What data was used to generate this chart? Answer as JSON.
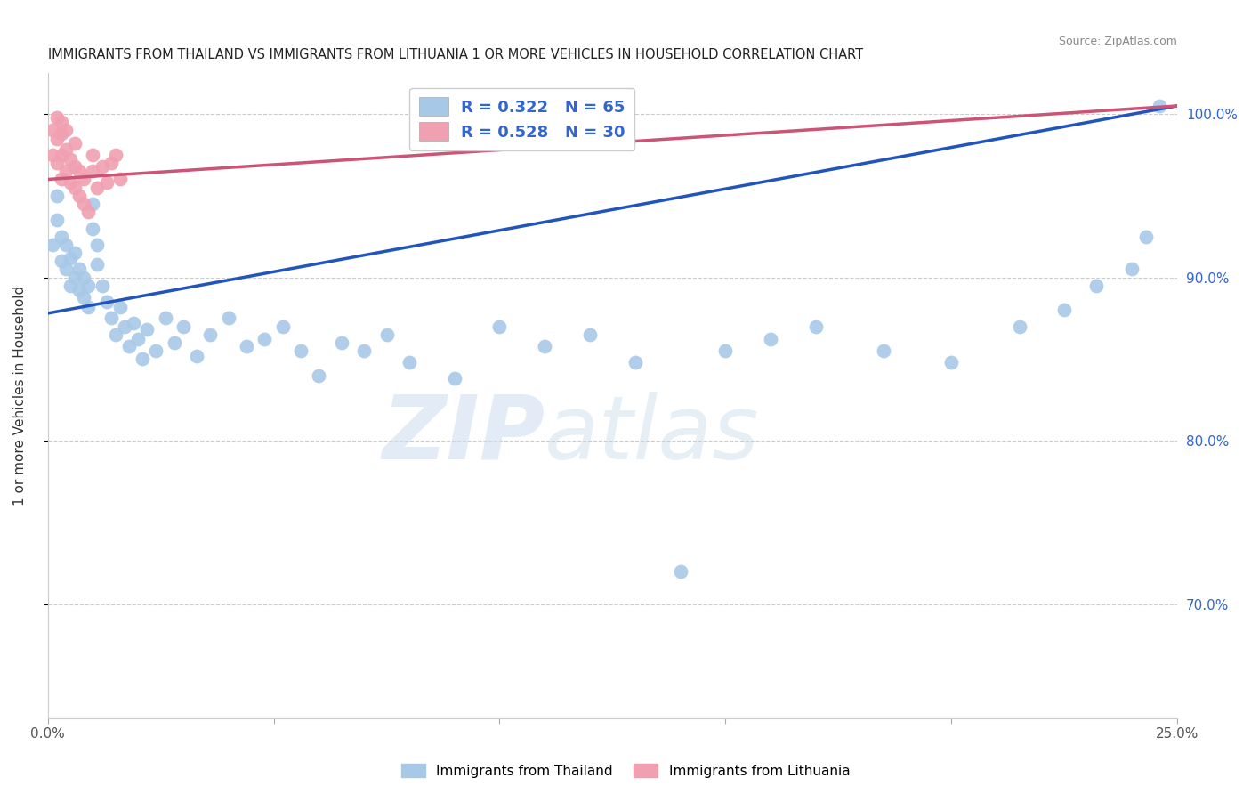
{
  "title": "IMMIGRANTS FROM THAILAND VS IMMIGRANTS FROM LITHUANIA 1 OR MORE VEHICLES IN HOUSEHOLD CORRELATION CHART",
  "source": "Source: ZipAtlas.com",
  "ylabel": "1 or more Vehicles in Household",
  "xmin": 0.0,
  "xmax": 0.25,
  "ymin": 0.63,
  "ymax": 1.025,
  "xticks": [
    0.0,
    0.05,
    0.1,
    0.15,
    0.2,
    0.25
  ],
  "xticklabels": [
    "0.0%",
    "",
    "",
    "",
    "",
    "25.0%"
  ],
  "ytick_positions": [
    0.7,
    0.8,
    0.9,
    1.0
  ],
  "yright_ticks": [
    0.7,
    0.8,
    0.9,
    1.0
  ],
  "yright_labels": [
    "70.0%",
    "80.0%",
    "90.0%",
    "100.0%"
  ],
  "legend_R_blue": "R = 0.322",
  "legend_N_blue": "N = 65",
  "legend_R_pink": "R = 0.528",
  "legend_N_pink": "N = 30",
  "blue_color": "#a8c8e8",
  "blue_line_color": "#2255bb",
  "pink_color": "#f0a0b0",
  "pink_line_color": "#cc5577",
  "blue_line_x0": 0.0,
  "blue_line_y0": 0.878,
  "blue_line_x1": 0.25,
  "blue_line_y1": 1.005,
  "pink_line_x0": 0.0,
  "pink_line_y0": 0.96,
  "pink_line_x1": 0.25,
  "pink_line_y1": 1.005,
  "scatter_blue_x": [
    0.001,
    0.002,
    0.002,
    0.003,
    0.003,
    0.004,
    0.004,
    0.005,
    0.005,
    0.006,
    0.006,
    0.007,
    0.007,
    0.008,
    0.008,
    0.009,
    0.009,
    0.01,
    0.01,
    0.011,
    0.011,
    0.012,
    0.013,
    0.014,
    0.015,
    0.016,
    0.017,
    0.018,
    0.019,
    0.02,
    0.021,
    0.022,
    0.024,
    0.026,
    0.028,
    0.03,
    0.033,
    0.036,
    0.04,
    0.044,
    0.048,
    0.052,
    0.056,
    0.06,
    0.065,
    0.07,
    0.075,
    0.08,
    0.09,
    0.1,
    0.11,
    0.12,
    0.13,
    0.14,
    0.15,
    0.16,
    0.17,
    0.185,
    0.2,
    0.215,
    0.225,
    0.232,
    0.24,
    0.243,
    0.246
  ],
  "scatter_blue_y": [
    0.92,
    0.935,
    0.95,
    0.91,
    0.925,
    0.905,
    0.92,
    0.895,
    0.912,
    0.9,
    0.915,
    0.892,
    0.905,
    0.888,
    0.9,
    0.882,
    0.895,
    0.93,
    0.945,
    0.92,
    0.908,
    0.895,
    0.885,
    0.875,
    0.865,
    0.882,
    0.87,
    0.858,
    0.872,
    0.862,
    0.85,
    0.868,
    0.855,
    0.875,
    0.86,
    0.87,
    0.852,
    0.865,
    0.875,
    0.858,
    0.862,
    0.87,
    0.855,
    0.84,
    0.86,
    0.855,
    0.865,
    0.848,
    0.838,
    0.87,
    0.858,
    0.865,
    0.848,
    0.72,
    0.855,
    0.862,
    0.87,
    0.855,
    0.848,
    0.87,
    0.88,
    0.895,
    0.905,
    0.925,
    1.005
  ],
  "scatter_pink_x": [
    0.001,
    0.001,
    0.002,
    0.002,
    0.002,
    0.003,
    0.003,
    0.003,
    0.003,
    0.004,
    0.004,
    0.004,
    0.005,
    0.005,
    0.006,
    0.006,
    0.006,
    0.007,
    0.007,
    0.008,
    0.008,
    0.009,
    0.01,
    0.01,
    0.011,
    0.012,
    0.013,
    0.014,
    0.015,
    0.016
  ],
  "scatter_pink_y": [
    0.975,
    0.99,
    0.97,
    0.985,
    0.998,
    0.96,
    0.975,
    0.988,
    0.995,
    0.965,
    0.978,
    0.99,
    0.958,
    0.972,
    0.955,
    0.968,
    0.982,
    0.95,
    0.965,
    0.945,
    0.96,
    0.94,
    0.965,
    0.975,
    0.955,
    0.968,
    0.958,
    0.97,
    0.975,
    0.96
  ],
  "watermark_zip": "ZIP",
  "watermark_atlas": "atlas",
  "grid_color": "#cccccc",
  "bg_color": "#ffffff"
}
